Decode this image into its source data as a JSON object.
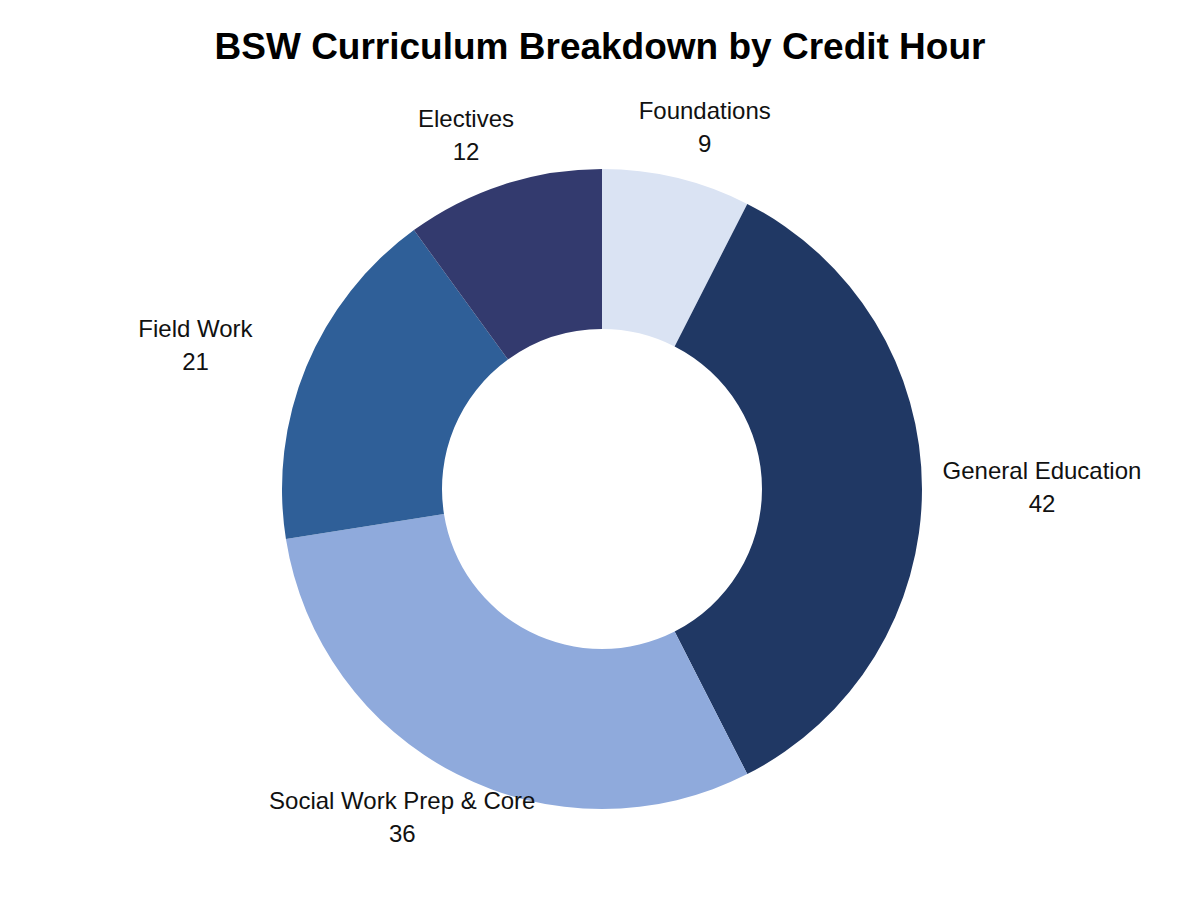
{
  "chart_data": {
    "type": "donut",
    "title": "BSW Curriculum Breakdown by Credit Hour",
    "categories": [
      "Foundations",
      "General Education",
      "Social Work Prep & Core",
      "Field Work",
      "Electives"
    ],
    "values": [
      9,
      42,
      36,
      21,
      12
    ],
    "colors": [
      "#dae3f3",
      "#203864",
      "#8faadc",
      "#2f5f98",
      "#333a6e"
    ]
  }
}
